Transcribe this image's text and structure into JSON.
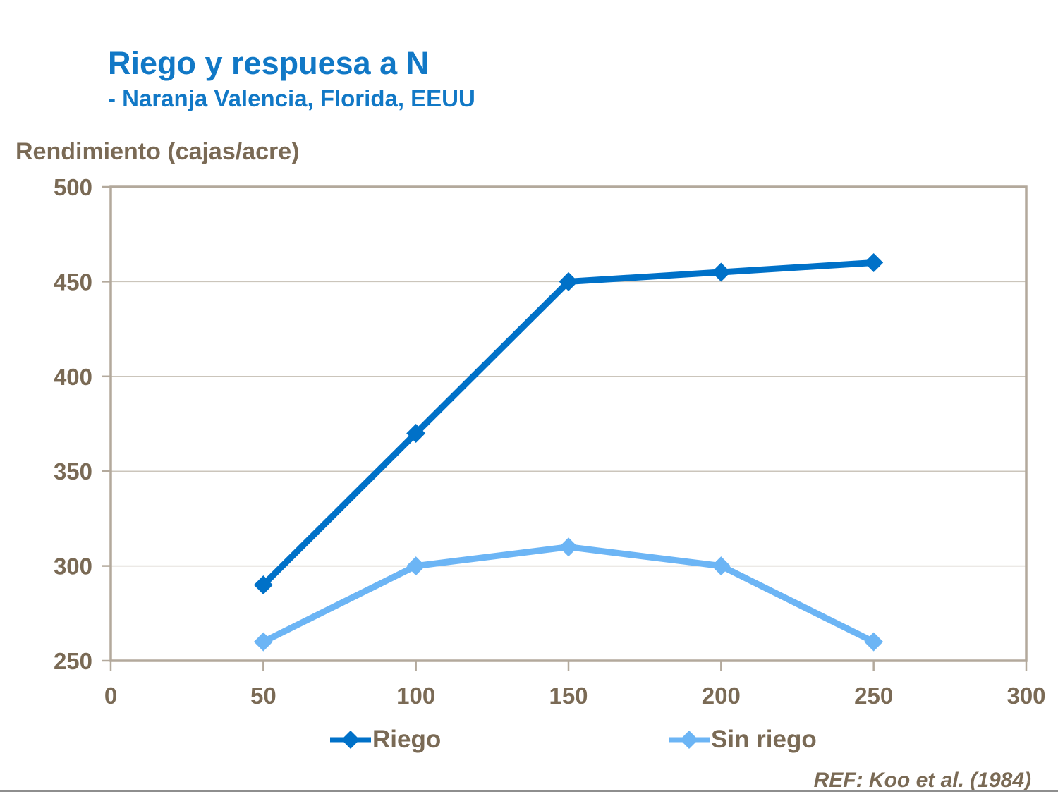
{
  "slide": {
    "title": "Riego y respuesa a N",
    "subtitle": "- Naranja Valencia, Florida, EEUU",
    "axis_title": "Rendimiento (cajas/acre)",
    "ref_note": "REF: Koo et al. (1984)",
    "title_color": "#1178C6",
    "text_color": "#7A6A55",
    "bottom_rule_color": "#8E8E8E"
  },
  "chart_data": {
    "type": "line",
    "title": "Riego y respuesa a N - Naranja Valencia, Florida, EEUU",
    "xlabel": "",
    "ylabel": "Rendimiento (cajas/acre)",
    "x": [
      50,
      100,
      150,
      200,
      250
    ],
    "series": [
      {
        "name": "Riego",
        "color": "#0071C8",
        "values": [
          290,
          370,
          450,
          455,
          460
        ]
      },
      {
        "name": "Sin riego",
        "color": "#6CB5F5",
        "values": [
          260,
          300,
          310,
          300,
          260
        ]
      }
    ],
    "xlim": [
      0,
      300
    ],
    "ylim": [
      250,
      500
    ],
    "xticks": [
      0,
      50,
      100,
      150,
      200,
      250,
      300
    ],
    "yticks": [
      250,
      300,
      350,
      400,
      450,
      500
    ],
    "grid": "horizontal",
    "legend_position": "bottom",
    "marker": "diamond",
    "border_color": "#B3A99C",
    "gridline_color": "#CBC5BB"
  }
}
